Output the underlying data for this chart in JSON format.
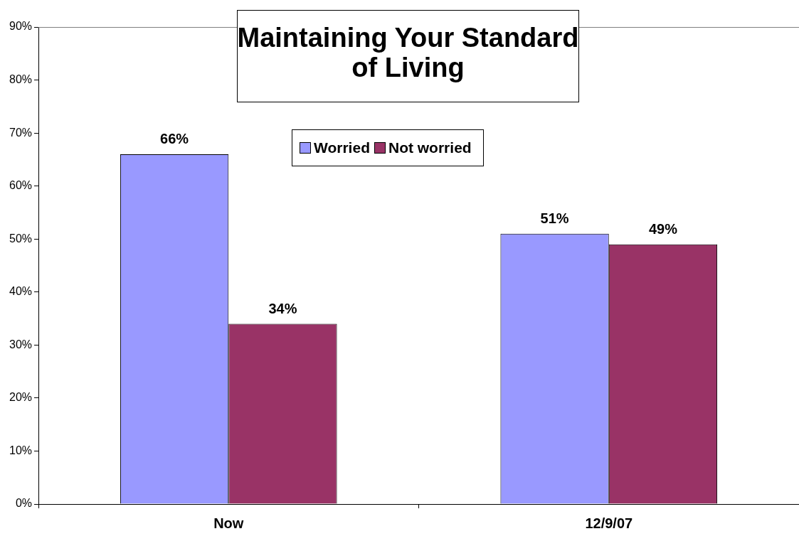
{
  "chart_data": {
    "type": "bar",
    "title": "Maintaining Your Standard of Living",
    "categories": [
      "Now",
      "12/9/07"
    ],
    "series": [
      {
        "name": "Worried",
        "color": "#9999ff",
        "values": [
          66,
          51
        ]
      },
      {
        "name": "Not worried",
        "color": "#993366",
        "values": [
          34,
          49
        ]
      }
    ],
    "ylim": [
      0,
      90
    ],
    "yticks": [
      {
        "value": 0,
        "label": "0%"
      },
      {
        "value": 10,
        "label": "10%"
      },
      {
        "value": 20,
        "label": "20%"
      },
      {
        "value": 30,
        "label": "30%"
      },
      {
        "value": 40,
        "label": "40%"
      },
      {
        "value": 50,
        "label": "50%"
      },
      {
        "value": 60,
        "label": "60%"
      },
      {
        "value": 70,
        "label": "70%"
      },
      {
        "value": 80,
        "label": "80%"
      },
      {
        "value": 90,
        "label": "90%"
      }
    ],
    "value_labels": [
      [
        "66%",
        "51%"
      ],
      [
        "34%",
        "49%"
      ]
    ],
    "legend": "top",
    "grid": false
  }
}
